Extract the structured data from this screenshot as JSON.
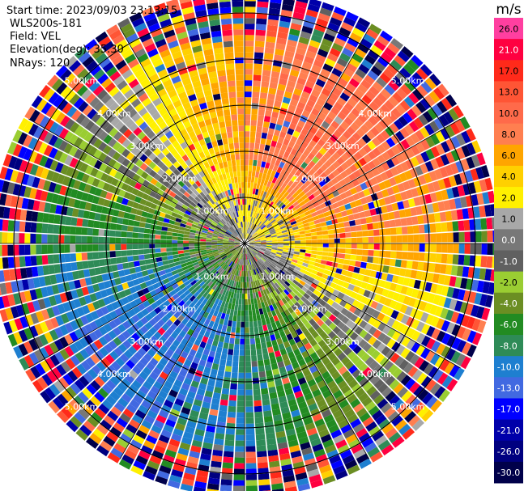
{
  "header": {
    "start_time": "Start time: 2023/09/03 23:13:15",
    "site": "WLS200s-181",
    "field": "Field: VEL",
    "elevation": "Elevation(deg): 35.30",
    "nrays": "NRays: 120"
  },
  "colorbar": {
    "unit": "m/s",
    "levels": [
      {
        "label": "26.0",
        "color": "#ff3fa0"
      },
      {
        "label": "21.0",
        "color": "#ff0040"
      },
      {
        "label": "17.0",
        "color": "#ff2a1a"
      },
      {
        "label": "13.0",
        "color": "#ff5535"
      },
      {
        "label": "10.0",
        "color": "#ff6a4a"
      },
      {
        "label": "8.0",
        "color": "#ff7f50"
      },
      {
        "label": "6.0",
        "color": "#ffa500"
      },
      {
        "label": "4.0",
        "color": "#ffd000"
      },
      {
        "label": "2.0",
        "color": "#fff000"
      },
      {
        "label": "1.0",
        "color": "#a8a8a8"
      },
      {
        "label": "0.0",
        "color": "#787878"
      },
      {
        "label": "-1.0",
        "color": "#606060"
      },
      {
        "label": "-2.0",
        "color": "#9acd32"
      },
      {
        "label": "-4.0",
        "color": "#6b8e23"
      },
      {
        "label": "-6.0",
        "color": "#228b22"
      },
      {
        "label": "-8.0",
        "color": "#2e8b57"
      },
      {
        "label": "-10.0",
        "color": "#1e7fd0"
      },
      {
        "label": "-13.0",
        "color": "#4169e1"
      },
      {
        "label": "-17.0",
        "color": "#0000ff"
      },
      {
        "label": "-21.0",
        "color": "#0000aa"
      },
      {
        "label": "-26.0",
        "color": "#000080"
      },
      {
        "label": "-30.0",
        "color": "#00004a"
      }
    ]
  },
  "chart_data": {
    "type": "heatmap",
    "projection": "polar (PPI)",
    "field": "VEL",
    "unit": "m/s",
    "n_rays": 120,
    "elevation_deg": 35.3,
    "range_rings_km": [
      1.0,
      2.0,
      3.0,
      4.0,
      5.0
    ],
    "ring_labels": [
      "1.00km",
      "2.00km",
      "3.00km",
      "4.00km",
      "5.00km"
    ],
    "max_range_km": 5.4,
    "spokes_deg": [
      0,
      30,
      60,
      90,
      120,
      150,
      180,
      210,
      240,
      270,
      300,
      330
    ],
    "velocity_pattern": {
      "toward_sw_direction_deg": 220,
      "away_ne_direction_deg": 40,
      "peak_speed_ms": 10.0,
      "noise_beyond_km": 4.5
    }
  }
}
